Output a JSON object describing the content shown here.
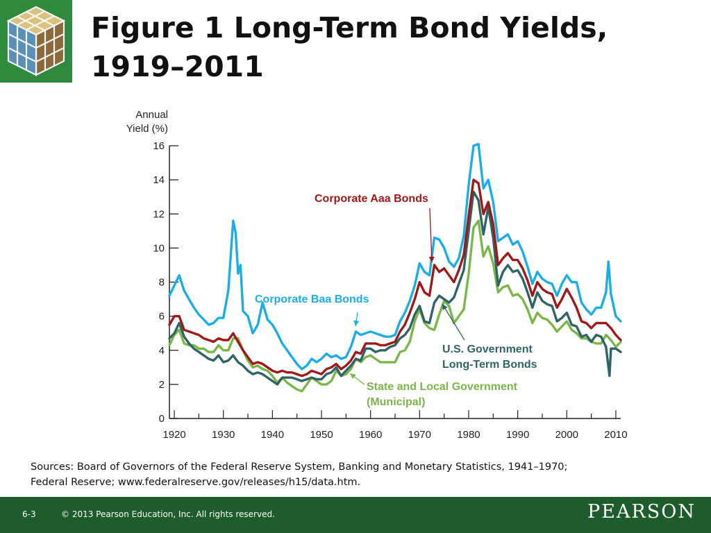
{
  "slide": {
    "title_line1": "Figure 1  Long-Term Bond Yields,",
    "title_line2": "1919–2011",
    "sources_line1": "Sources: Board of Governors of the Federal Reserve System, Banking and Monetary Statistics, 1941–1970;",
    "sources_line2": "Federal Reserve; www.federalreserve.gov/releases/h15/data.htm.",
    "page_number": "6-3",
    "copyright": "© 2013 Pearson Education, Inc. All rights reserved.",
    "brand": "PEARSON",
    "logo_icon": "rubiks-cube-logo-icon"
  },
  "colors": {
    "baa": "#1aaee8",
    "aaa": "#a01818",
    "treasury": "#2e6466",
    "municipal": "#7ab648",
    "footer": "#1f5c2b"
  },
  "chart_data": {
    "type": "line",
    "title": "",
    "xlabel": "",
    "ylabel": "Annual Yield (%)",
    "ylabel_lines": [
      "Annual",
      "Yield (%)"
    ],
    "xlim": [
      1919,
      2011
    ],
    "ylim": [
      0,
      16
    ],
    "xticks": [
      1920,
      1930,
      1940,
      1950,
      1960,
      1970,
      1980,
      1990,
      2000,
      2010
    ],
    "xtick_labels": [
      "1920",
      "1930",
      "1940",
      "1950",
      "1960",
      "1970",
      "1980",
      "1990",
      "2000",
      "2010"
    ],
    "yticks": [
      0,
      2,
      4,
      6,
      8,
      10,
      12,
      14,
      16
    ],
    "ytick_labels": [
      "0",
      "2",
      "4",
      "6",
      "8",
      "10",
      "12",
      "14",
      "16"
    ],
    "grid": false,
    "series": [
      {
        "name": "Corporate Baa Bonds",
        "label_lines": [
          "Corporate Baa Bonds"
        ],
        "color_key": "baa",
        "x": [
          1919,
          1920,
          1921,
          1922,
          1923,
          1924,
          1925,
          1926,
          1927,
          1928,
          1929,
          1930,
          1931,
          1932,
          1932.5,
          1933,
          1933.5,
          1934,
          1935,
          1936,
          1937,
          1938,
          1939,
          1940,
          1941,
          1942,
          1943,
          1944,
          1945,
          1946,
          1947,
          1948,
          1949,
          1950,
          1951,
          1952,
          1953,
          1954,
          1955,
          1956,
          1957,
          1958,
          1959,
          1960,
          1961,
          1962,
          1963,
          1964,
          1965,
          1966,
          1967,
          1968,
          1969,
          1970,
          1971,
          1972,
          1973,
          1974,
          1975,
          1976,
          1977,
          1978,
          1979,
          1980,
          1981,
          1982,
          1983,
          1984,
          1985,
          1986,
          1987,
          1988,
          1989,
          1990,
          1991,
          1992,
          1993,
          1994,
          1995,
          1996,
          1997,
          1998,
          1999,
          2000,
          2001,
          2002,
          2003,
          2004,
          2005,
          2006,
          2007,
          2008,
          2008.5,
          2009,
          2010,
          2011
        ],
        "y": [
          7.2,
          7.8,
          8.4,
          7.5,
          7.0,
          6.5,
          6.1,
          5.8,
          5.5,
          5.6,
          5.9,
          5.9,
          7.5,
          11.6,
          10.9,
          8.5,
          9.0,
          6.3,
          6.0,
          5.0,
          5.5,
          6.8,
          5.8,
          5.5,
          5.0,
          4.4,
          4.0,
          3.6,
          3.2,
          2.9,
          3.1,
          3.5,
          3.3,
          3.5,
          3.8,
          3.6,
          3.7,
          3.5,
          3.6,
          4.2,
          5.1,
          4.9,
          5.0,
          5.1,
          5.0,
          4.9,
          4.8,
          4.8,
          4.9,
          5.7,
          6.2,
          6.9,
          7.8,
          9.1,
          8.6,
          8.4,
          10.6,
          10.5,
          10.0,
          9.2,
          8.9,
          9.4,
          10.7,
          13.7,
          16.0,
          16.1,
          13.5,
          14.0,
          12.7,
          10.4,
          10.6,
          10.8,
          10.2,
          10.4,
          9.8,
          8.9,
          7.9,
          8.6,
          8.2,
          8.0,
          7.9,
          7.2,
          7.9,
          8.4,
          8.0,
          8.0,
          6.8,
          6.4,
          6.1,
          6.5,
          6.5,
          7.4,
          9.2,
          7.3,
          6.0,
          5.7
        ]
      },
      {
        "name": "Corporate Aaa Bonds",
        "label_lines": [
          "Corporate Aaa Bonds"
        ],
        "color_key": "aaa",
        "x": [
          1919,
          1920,
          1921,
          1922,
          1923,
          1924,
          1925,
          1926,
          1927,
          1928,
          1929,
          1930,
          1931,
          1932,
          1933,
          1934,
          1935,
          1936,
          1937,
          1938,
          1939,
          1940,
          1941,
          1942,
          1943,
          1944,
          1945,
          1946,
          1947,
          1948,
          1949,
          1950,
          1951,
          1952,
          1953,
          1954,
          1955,
          1956,
          1957,
          1958,
          1959,
          1960,
          1961,
          1962,
          1963,
          1964,
          1965,
          1966,
          1967,
          1968,
          1969,
          1970,
          1971,
          1972,
          1973,
          1974,
          1975,
          1976,
          1977,
          1978,
          1979,
          1980,
          1981,
          1982,
          1983,
          1984,
          1985,
          1986,
          1987,
          1988,
          1989,
          1990,
          1991,
          1992,
          1993,
          1994,
          1995,
          1996,
          1997,
          1998,
          1999,
          2000,
          2001,
          2002,
          2003,
          2004,
          2005,
          2006,
          2007,
          2008,
          2009,
          2010,
          2011
        ],
        "y": [
          5.5,
          6.0,
          6.0,
          5.2,
          5.1,
          5.0,
          4.9,
          4.7,
          4.6,
          4.5,
          4.7,
          4.6,
          4.6,
          5.0,
          4.5,
          4.0,
          3.6,
          3.2,
          3.3,
          3.2,
          3.0,
          2.8,
          2.7,
          2.8,
          2.7,
          2.7,
          2.6,
          2.5,
          2.6,
          2.8,
          2.7,
          2.6,
          2.9,
          3.0,
          3.2,
          2.9,
          3.1,
          3.4,
          3.9,
          3.8,
          4.4,
          4.4,
          4.4,
          4.3,
          4.3,
          4.4,
          4.5,
          5.1,
          5.5,
          6.2,
          7.0,
          8.0,
          7.4,
          7.2,
          9.0,
          8.6,
          8.8,
          8.4,
          8.0,
          8.7,
          9.6,
          11.9,
          14.0,
          13.8,
          12.0,
          12.7,
          11.4,
          9.0,
          9.4,
          9.7,
          9.3,
          9.3,
          8.8,
          8.1,
          7.2,
          8.0,
          7.6,
          7.4,
          7.3,
          6.5,
          7.0,
          7.6,
          7.1,
          6.5,
          5.7,
          5.6,
          5.3,
          5.6,
          5.6,
          5.6,
          5.3,
          4.9,
          4.6
        ]
      },
      {
        "name": "U.S. Government Long-Term Bonds",
        "label_lines": [
          "U.S. Government",
          "Long-Term Bonds"
        ],
        "color_key": "treasury",
        "x": [
          1919,
          1920,
          1921,
          1922,
          1923,
          1924,
          1925,
          1926,
          1927,
          1928,
          1929,
          1930,
          1931,
          1932,
          1933,
          1934,
          1935,
          1936,
          1937,
          1938,
          1939,
          1940,
          1941,
          1942,
          1943,
          1944,
          1945,
          1946,
          1947,
          1948,
          1949,
          1950,
          1951,
          1952,
          1953,
          1954,
          1955,
          1956,
          1957,
          1958,
          1959,
          1960,
          1961,
          1962,
          1963,
          1964,
          1965,
          1966,
          1967,
          1968,
          1969,
          1970,
          1971,
          1972,
          1973,
          1974,
          1975,
          1976,
          1977,
          1978,
          1979,
          1980,
          1981,
          1982,
          1983,
          1984,
          1985,
          1986,
          1987,
          1988,
          1989,
          1990,
          1991,
          1992,
          1993,
          1994,
          1995,
          1996,
          1997,
          1998,
          1999,
          2000,
          2001,
          2002,
          2003,
          2004,
          2005,
          2006,
          2007,
          2008,
          2008.7,
          2009,
          2010,
          2011
        ],
        "y": [
          4.7,
          5.0,
          5.6,
          4.8,
          4.4,
          4.1,
          3.9,
          3.7,
          3.5,
          3.4,
          3.7,
          3.3,
          3.4,
          3.7,
          3.3,
          3.1,
          2.8,
          2.6,
          2.7,
          2.6,
          2.4,
          2.2,
          2.0,
          2.4,
          2.4,
          2.4,
          2.3,
          2.2,
          2.3,
          2.4,
          2.3,
          2.3,
          2.6,
          2.7,
          3.0,
          2.5,
          2.8,
          3.1,
          3.5,
          3.4,
          4.1,
          4.1,
          3.9,
          4.0,
          4.0,
          4.2,
          4.3,
          4.7,
          4.9,
          5.3,
          6.1,
          6.6,
          5.7,
          5.6,
          6.8,
          7.2,
          7.0,
          6.8,
          7.1,
          7.9,
          8.7,
          11.0,
          13.3,
          12.8,
          10.8,
          12.4,
          10.6,
          7.8,
          8.6,
          9.0,
          8.6,
          8.7,
          8.2,
          7.4,
          6.5,
          7.4,
          6.9,
          6.7,
          6.6,
          5.7,
          5.9,
          6.2,
          5.5,
          5.4,
          4.8,
          4.9,
          4.5,
          4.9,
          4.8,
          4.2,
          2.5,
          4.1,
          4.1,
          3.9
        ]
      },
      {
        "name": "State and Local Government (Municipal)",
        "label_lines": [
          "State and Local Government",
          "(Municipal)"
        ],
        "color_key": "municipal",
        "x": [
          1919,
          1920,
          1921,
          1922,
          1923,
          1924,
          1925,
          1926,
          1927,
          1928,
          1929,
          1930,
          1931,
          1932,
          1933,
          1934,
          1935,
          1936,
          1937,
          1938,
          1939,
          1940,
          1941,
          1942,
          1943,
          1944,
          1945,
          1946,
          1947,
          1948,
          1949,
          1950,
          1951,
          1952,
          1953,
          1954,
          1955,
          1956,
          1957,
          1958,
          1959,
          1960,
          1961,
          1962,
          1963,
          1964,
          1965,
          1966,
          1967,
          1968,
          1969,
          1970,
          1971,
          1972,
          1973,
          1974,
          1975,
          1976,
          1977,
          1978,
          1979,
          1980,
          1981,
          1982,
          1983,
          1984,
          1985,
          1986,
          1987,
          1988,
          1989,
          1990,
          1991,
          1992,
          1993,
          1994,
          1995,
          1996,
          1997,
          1998,
          1999,
          2000,
          2001,
          2002,
          2003,
          2004,
          2005,
          2006,
          2007,
          2008,
          2009,
          2010,
          2011
        ],
        "y": [
          4.3,
          4.9,
          5.2,
          4.4,
          4.3,
          4.3,
          4.1,
          4.1,
          3.9,
          3.9,
          4.3,
          4.0,
          4.0,
          4.7,
          4.7,
          4.0,
          3.4,
          3.0,
          3.1,
          2.9,
          2.8,
          2.5,
          2.1,
          2.4,
          2.1,
          1.9,
          1.7,
          1.6,
          2.0,
          2.4,
          2.2,
          2.0,
          2.0,
          2.2,
          2.8,
          2.5,
          2.6,
          2.9,
          3.5,
          3.3,
          3.6,
          3.7,
          3.5,
          3.3,
          3.3,
          3.3,
          3.3,
          3.9,
          4.0,
          4.5,
          5.7,
          6.4,
          5.6,
          5.3,
          5.2,
          6.1,
          6.9,
          6.6,
          5.6,
          6.0,
          6.4,
          8.5,
          11.2,
          11.6,
          9.5,
          10.1,
          9.1,
          7.4,
          7.7,
          7.8,
          7.2,
          7.3,
          7.0,
          6.4,
          5.6,
          6.2,
          5.9,
          5.8,
          5.5,
          5.1,
          5.4,
          5.7,
          5.2,
          5.0,
          4.7,
          4.7,
          4.5,
          4.4,
          4.4,
          4.9,
          4.6,
          4.2,
          4.5
        ]
      }
    ]
  }
}
